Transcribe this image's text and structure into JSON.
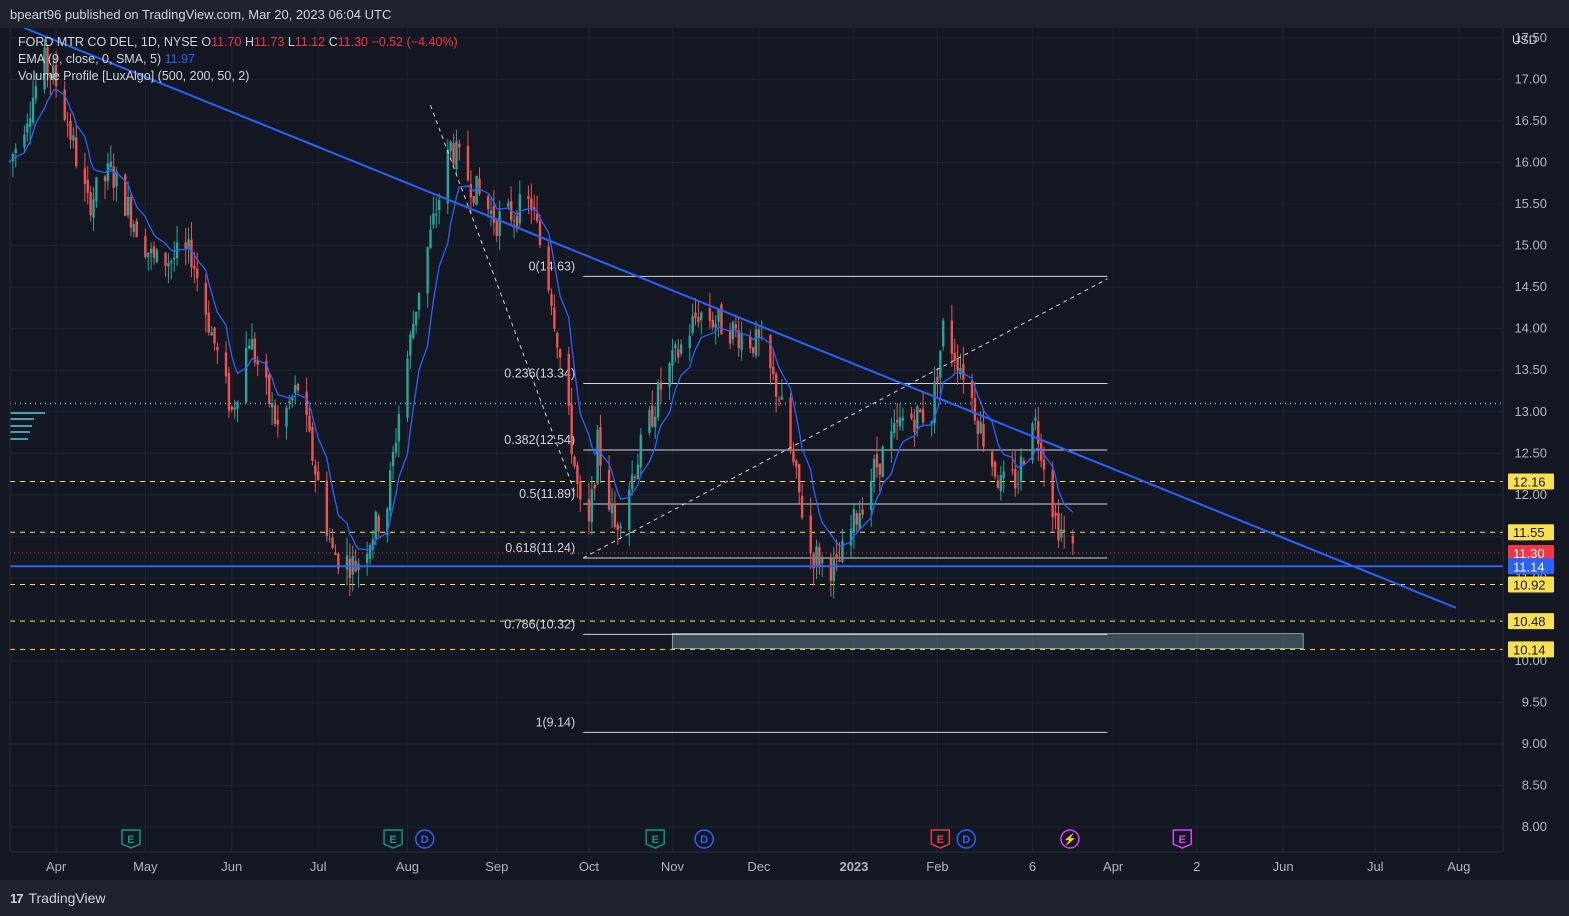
{
  "header": {
    "published_text": "bpeart96 published on TradingView.com, Mar 20, 2023 06:04 UTC"
  },
  "legend": {
    "symbol": "FORD MTR CO DEL, 1D, NYSE",
    "open_label": "O",
    "open": "11.70",
    "high_label": "H",
    "high": "11.73",
    "low_label": "L",
    "low": "11.12",
    "close_label": "C",
    "close": "11.30",
    "change": "−0.52 (−4.40%)",
    "ema_label": "EMA (9, close, 0, SMA, 5)",
    "ema_value": "11.97",
    "volume_profile_label": "Volume Profile [LuxAlgo] (500, 200, 50, 2)"
  },
  "currency": "USD",
  "footer": {
    "brand": "TradingView",
    "brand_mark": "17"
  },
  "colors": {
    "background": "#131722",
    "up": "#26a69a",
    "down": "#ef5350",
    "trendline": "#2962ff",
    "ema": "#2962ff",
    "level": "#f9e04c",
    "fib": "#d1d4dc",
    "zone": "#b2ebf2"
  },
  "chart_data": {
    "type": "candlestick",
    "ylim": [
      7.7,
      17.62
    ],
    "y_ticks": [
      "8.00",
      "8.50",
      "9.00",
      "9.50",
      "10.00",
      "10.50",
      "11.00",
      "11.50",
      "12.00",
      "12.50",
      "13.00",
      "13.50",
      "14.00",
      "14.50",
      "15.00",
      "15.50",
      "16.00",
      "16.50",
      "17.00",
      "17.50"
    ],
    "x_ticks": [
      {
        "label": "Apr",
        "date": "2022-04-01"
      },
      {
        "label": "May",
        "date": "2022-05-02"
      },
      {
        "label": "Jun",
        "date": "2022-06-01"
      },
      {
        "label": "Jul",
        "date": "2022-07-01"
      },
      {
        "label": "Aug",
        "date": "2022-08-01"
      },
      {
        "label": "Sep",
        "date": "2022-09-01"
      },
      {
        "label": "Oct",
        "date": "2022-10-03"
      },
      {
        "label": "Nov",
        "date": "2022-11-01"
      },
      {
        "label": "Dec",
        "date": "2022-12-01"
      },
      {
        "label": "2023",
        "date": "2023-01-03"
      },
      {
        "label": "Feb",
        "date": "2023-02-01"
      },
      {
        "label": "6",
        "date": "2023-03-06"
      },
      {
        "label": "Apr",
        "date": "2023-04-03"
      },
      {
        "label": "2",
        "date": "2023-05-02"
      },
      {
        "label": "Jun",
        "date": "2023-06-01"
      },
      {
        "label": "Jul",
        "date": "2023-07-03"
      },
      {
        "label": "Aug",
        "date": "2023-08-01"
      }
    ],
    "price_labels": [
      {
        "text": "12.16",
        "value": 12.16,
        "kind": "level"
      },
      {
        "text": "11.55",
        "value": 11.55,
        "kind": "level"
      },
      {
        "text": "11.30",
        "value": 11.3,
        "kind": "last"
      },
      {
        "text": "11.14",
        "value": 11.14,
        "kind": "support"
      },
      {
        "text": "10.92",
        "value": 10.92,
        "kind": "level"
      },
      {
        "text": "10.48",
        "value": 10.48,
        "kind": "level"
      },
      {
        "text": "10.14",
        "value": 10.14,
        "kind": "level"
      }
    ],
    "horizontal_levels": [
      12.16,
      11.55,
      10.92,
      10.48,
      10.14
    ],
    "last_price": 11.3,
    "support_line": 11.14,
    "dotted_poc": 13.1,
    "fib_levels": [
      {
        "label": "0(14.63)",
        "value": 14.63
      },
      {
        "label": "0.236(13.34)",
        "value": 13.34
      },
      {
        "label": "0.382(12.54)",
        "value": 12.54
      },
      {
        "label": "0.5(11.89)",
        "value": 11.89
      },
      {
        "label": "0.618(11.24)",
        "value": 11.24
      },
      {
        "label": "0.786(10.32)",
        "value": 10.32
      },
      {
        "label": "1(9.14)",
        "value": 9.14
      }
    ],
    "fib_range": {
      "start": "2022-10-01",
      "end": "2023-04-01"
    },
    "zone": {
      "start": "2022-11-01",
      "end": "2023-06-08",
      "top": 10.33,
      "bottom": 10.15
    },
    "trendline_down": [
      {
        "date": "2022-03-21",
        "value": 17.62
      },
      {
        "date": "2023-07-31",
        "value": 10.64
      }
    ],
    "dashed_lines": [
      [
        {
          "date": "2022-08-09",
          "value": 16.69
        },
        {
          "date": "2022-09-28",
          "value": 12.04
        }
      ],
      [
        {
          "date": "2022-10-01",
          "value": 11.24
        },
        {
          "date": "2023-04-01",
          "value": 14.6
        }
      ]
    ],
    "events": [
      {
        "type": "E",
        "date": "2022-04-27",
        "color": "#089981"
      },
      {
        "type": "E",
        "date": "2022-07-27",
        "color": "#089981"
      },
      {
        "type": "D",
        "date": "2022-08-07",
        "color": "#2962ff"
      },
      {
        "type": "E",
        "date": "2022-10-26",
        "color": "#089981"
      },
      {
        "type": "D",
        "date": "2022-11-12",
        "color": "#2962ff"
      },
      {
        "type": "E",
        "date": "2023-02-02",
        "color": "#f23645"
      },
      {
        "type": "D",
        "date": "2023-02-11",
        "color": "#2962ff"
      },
      {
        "type": "⚡",
        "date": "2023-03-19",
        "color": "#e040fb"
      },
      {
        "type": "E",
        "date": "2023-04-27",
        "color": "#e040fb"
      }
    ],
    "price_path": [
      [
        "2022-03-16",
        16.0
      ],
      [
        "2022-03-28",
        17.2
      ],
      [
        "2022-04-02",
        16.9
      ],
      [
        "2022-04-12",
        15.5
      ],
      [
        "2022-04-20",
        15.9
      ],
      [
        "2022-05-05",
        14.8
      ],
      [
        "2022-05-18",
        14.9
      ],
      [
        "2022-06-01",
        13.0
      ],
      [
        "2022-06-07",
        13.9
      ],
      [
        "2022-06-17",
        12.8
      ],
      [
        "2022-06-24",
        13.3
      ],
      [
        "2022-07-06",
        11.3
      ],
      [
        "2022-07-14",
        11.15
      ],
      [
        "2022-07-25",
        11.9
      ],
      [
        "2022-07-29",
        13.0
      ],
      [
        "2022-08-05",
        14.5
      ],
      [
        "2022-08-16",
        16.2
      ],
      [
        "2022-08-24",
        15.7
      ],
      [
        "2022-09-01",
        15.3
      ],
      [
        "2022-09-13",
        15.5
      ],
      [
        "2022-09-20",
        14.4
      ],
      [
        "2022-09-26",
        12.9
      ],
      [
        "2022-10-02",
        11.25
      ],
      [
        "2022-10-06",
        12.6
      ],
      [
        "2022-10-12",
        11.6
      ],
      [
        "2022-10-28",
        13.3
      ],
      [
        "2022-11-10",
        14.2
      ],
      [
        "2022-11-21",
        14.0
      ],
      [
        "2022-12-01",
        13.8
      ],
      [
        "2022-12-08",
        13.2
      ],
      [
        "2022-12-19",
        11.3
      ],
      [
        "2022-12-28",
        11.1
      ],
      [
        "2023-01-10",
        12.3
      ],
      [
        "2023-01-20",
        12.9
      ],
      [
        "2023-01-30",
        13.0
      ],
      [
        "2023-02-03",
        14.0
      ],
      [
        "2023-02-10",
        13.5
      ],
      [
        "2023-02-16",
        12.8
      ],
      [
        "2023-02-23",
        12.1
      ],
      [
        "2023-03-01",
        12.2
      ],
      [
        "2023-03-06",
        13.0
      ],
      [
        "2023-03-09",
        12.6
      ],
      [
        "2023-03-14",
        11.7
      ],
      [
        "2023-03-20",
        11.3
      ]
    ],
    "ema_last": 11.97
  }
}
